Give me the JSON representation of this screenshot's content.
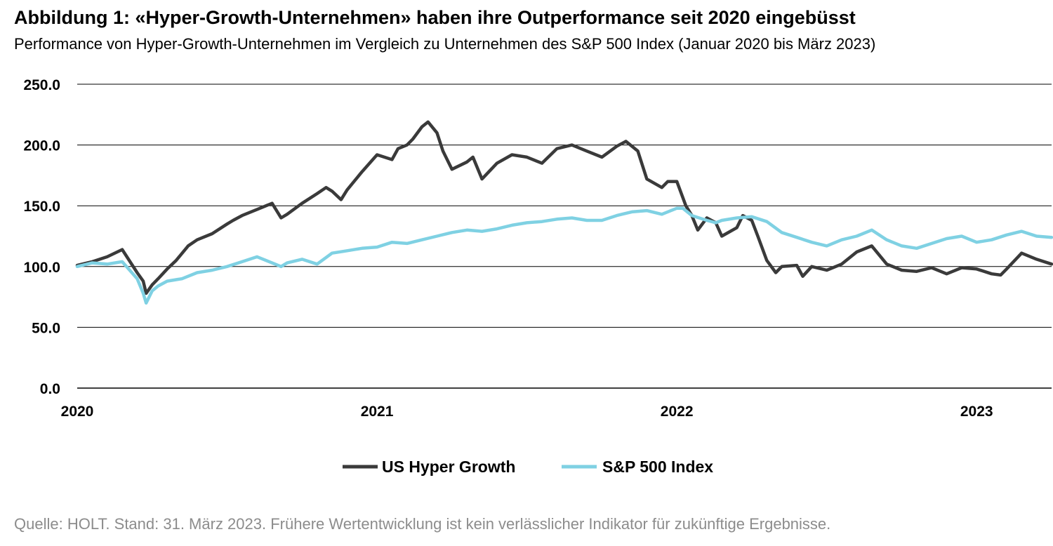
{
  "header": {
    "title": "Abbildung 1: «Hyper-Growth-Unternehmen» haben ihre Outperformance seit 2020 eingebüsst",
    "subtitle": "Performance von Hyper-Growth-Unternehmen im Vergleich zu Unternehmen des S&P 500 Index (Januar 2020 bis März 2023)"
  },
  "footer": {
    "source": "Quelle: HOLT. Stand: 31. März 2023. Frühere Wertentwicklung ist kein verlässlicher Indikator für zukünftige Ergebnisse."
  },
  "chart_data": {
    "type": "line",
    "title": "",
    "xlabel": "",
    "ylabel": "",
    "ylim": [
      0,
      250
    ],
    "xlim": [
      2020.0,
      2023.25
    ],
    "y_ticks": [
      "0.0",
      "50.0",
      "100.0",
      "150.0",
      "200.0",
      "250.0"
    ],
    "x_ticks": [
      "2020",
      "2021",
      "2022",
      "2023"
    ],
    "grid": "horizontal",
    "legend_position": "bottom",
    "series": [
      {
        "name": "US Hyper Growth",
        "color": "#3a3a3a",
        "x": [
          2020.0,
          2020.05,
          2020.1,
          2020.15,
          2020.2,
          2020.22,
          2020.23,
          2020.25,
          2020.27,
          2020.3,
          2020.33,
          2020.37,
          2020.4,
          2020.45,
          2020.5,
          2020.52,
          2020.55,
          2020.6,
          2020.65,
          2020.68,
          2020.7,
          2020.75,
          2020.8,
          2020.83,
          2020.85,
          2020.88,
          2020.9,
          2020.95,
          2021.0,
          2021.05,
          2021.07,
          2021.1,
          2021.12,
          2021.15,
          2021.17,
          2021.2,
          2021.22,
          2021.25,
          2021.3,
          2021.32,
          2021.35,
          2021.4,
          2021.45,
          2021.5,
          2021.55,
          2021.6,
          2021.65,
          2021.7,
          2021.75,
          2021.8,
          2021.83,
          2021.87,
          2021.9,
          2021.95,
          2021.97,
          2022.0,
          2022.03,
          2022.05,
          2022.07,
          2022.1,
          2022.13,
          2022.15,
          2022.2,
          2022.22,
          2022.25,
          2022.27,
          2022.3,
          2022.33,
          2022.35,
          2022.4,
          2022.42,
          2022.45,
          2022.5,
          2022.55,
          2022.6,
          2022.65,
          2022.7,
          2022.75,
          2022.8,
          2022.85,
          2022.9,
          2022.95,
          2023.0,
          2023.05,
          2023.08,
          2023.1,
          2023.15,
          2023.2,
          2023.25
        ],
        "values": [
          101,
          104,
          108,
          114,
          95,
          88,
          78,
          85,
          90,
          98,
          105,
          117,
          122,
          127,
          135,
          138,
          142,
          147,
          152,
          140,
          143,
          152,
          160,
          165,
          162,
          155,
          163,
          178,
          192,
          188,
          197,
          200,
          205,
          215,
          219,
          210,
          195,
          180,
          186,
          190,
          172,
          185,
          192,
          190,
          185,
          197,
          200,
          195,
          190,
          199,
          203,
          195,
          172,
          165,
          170,
          170,
          150,
          142,
          130,
          140,
          136,
          125,
          132,
          142,
          138,
          125,
          105,
          95,
          100,
          101,
          92,
          100,
          97,
          102,
          112,
          117,
          102,
          97,
          96,
          99,
          94,
          99,
          98,
          94,
          93,
          98,
          111,
          106,
          102
        ]
      },
      {
        "name": "S&P 500 Index",
        "color": "#7fd1e3",
        "x": [
          2020.0,
          2020.05,
          2020.1,
          2020.15,
          2020.2,
          2020.22,
          2020.23,
          2020.25,
          2020.27,
          2020.3,
          2020.35,
          2020.4,
          2020.45,
          2020.5,
          2020.55,
          2020.6,
          2020.65,
          2020.68,
          2020.7,
          2020.75,
          2020.8,
          2020.85,
          2020.9,
          2020.95,
          2021.0,
          2021.05,
          2021.1,
          2021.15,
          2021.2,
          2021.25,
          2021.3,
          2021.35,
          2021.4,
          2021.45,
          2021.5,
          2021.55,
          2021.6,
          2021.65,
          2021.7,
          2021.75,
          2021.8,
          2021.85,
          2021.9,
          2021.95,
          2022.0,
          2022.02,
          2022.05,
          2022.1,
          2022.13,
          2022.15,
          2022.2,
          2022.25,
          2022.3,
          2022.35,
          2022.4,
          2022.45,
          2022.5,
          2022.55,
          2022.6,
          2022.65,
          2022.7,
          2022.75,
          2022.8,
          2022.85,
          2022.9,
          2022.95,
          2023.0,
          2023.05,
          2023.1,
          2023.15,
          2023.2,
          2023.25
        ],
        "values": [
          100,
          103,
          102,
          104,
          90,
          78,
          70,
          80,
          84,
          88,
          90,
          95,
          97,
          100,
          104,
          108,
          103,
          100,
          103,
          106,
          102,
          111,
          113,
          115,
          116,
          120,
          119,
          122,
          125,
          128,
          130,
          129,
          131,
          134,
          136,
          137,
          139,
          140,
          138,
          138,
          142,
          145,
          146,
          143,
          148,
          148,
          142,
          138,
          136,
          138,
          140,
          141,
          137,
          128,
          124,
          120,
          117,
          122,
          125,
          130,
          122,
          117,
          115,
          119,
          123,
          125,
          120,
          122,
          126,
          129,
          125,
          124
        ]
      }
    ]
  }
}
